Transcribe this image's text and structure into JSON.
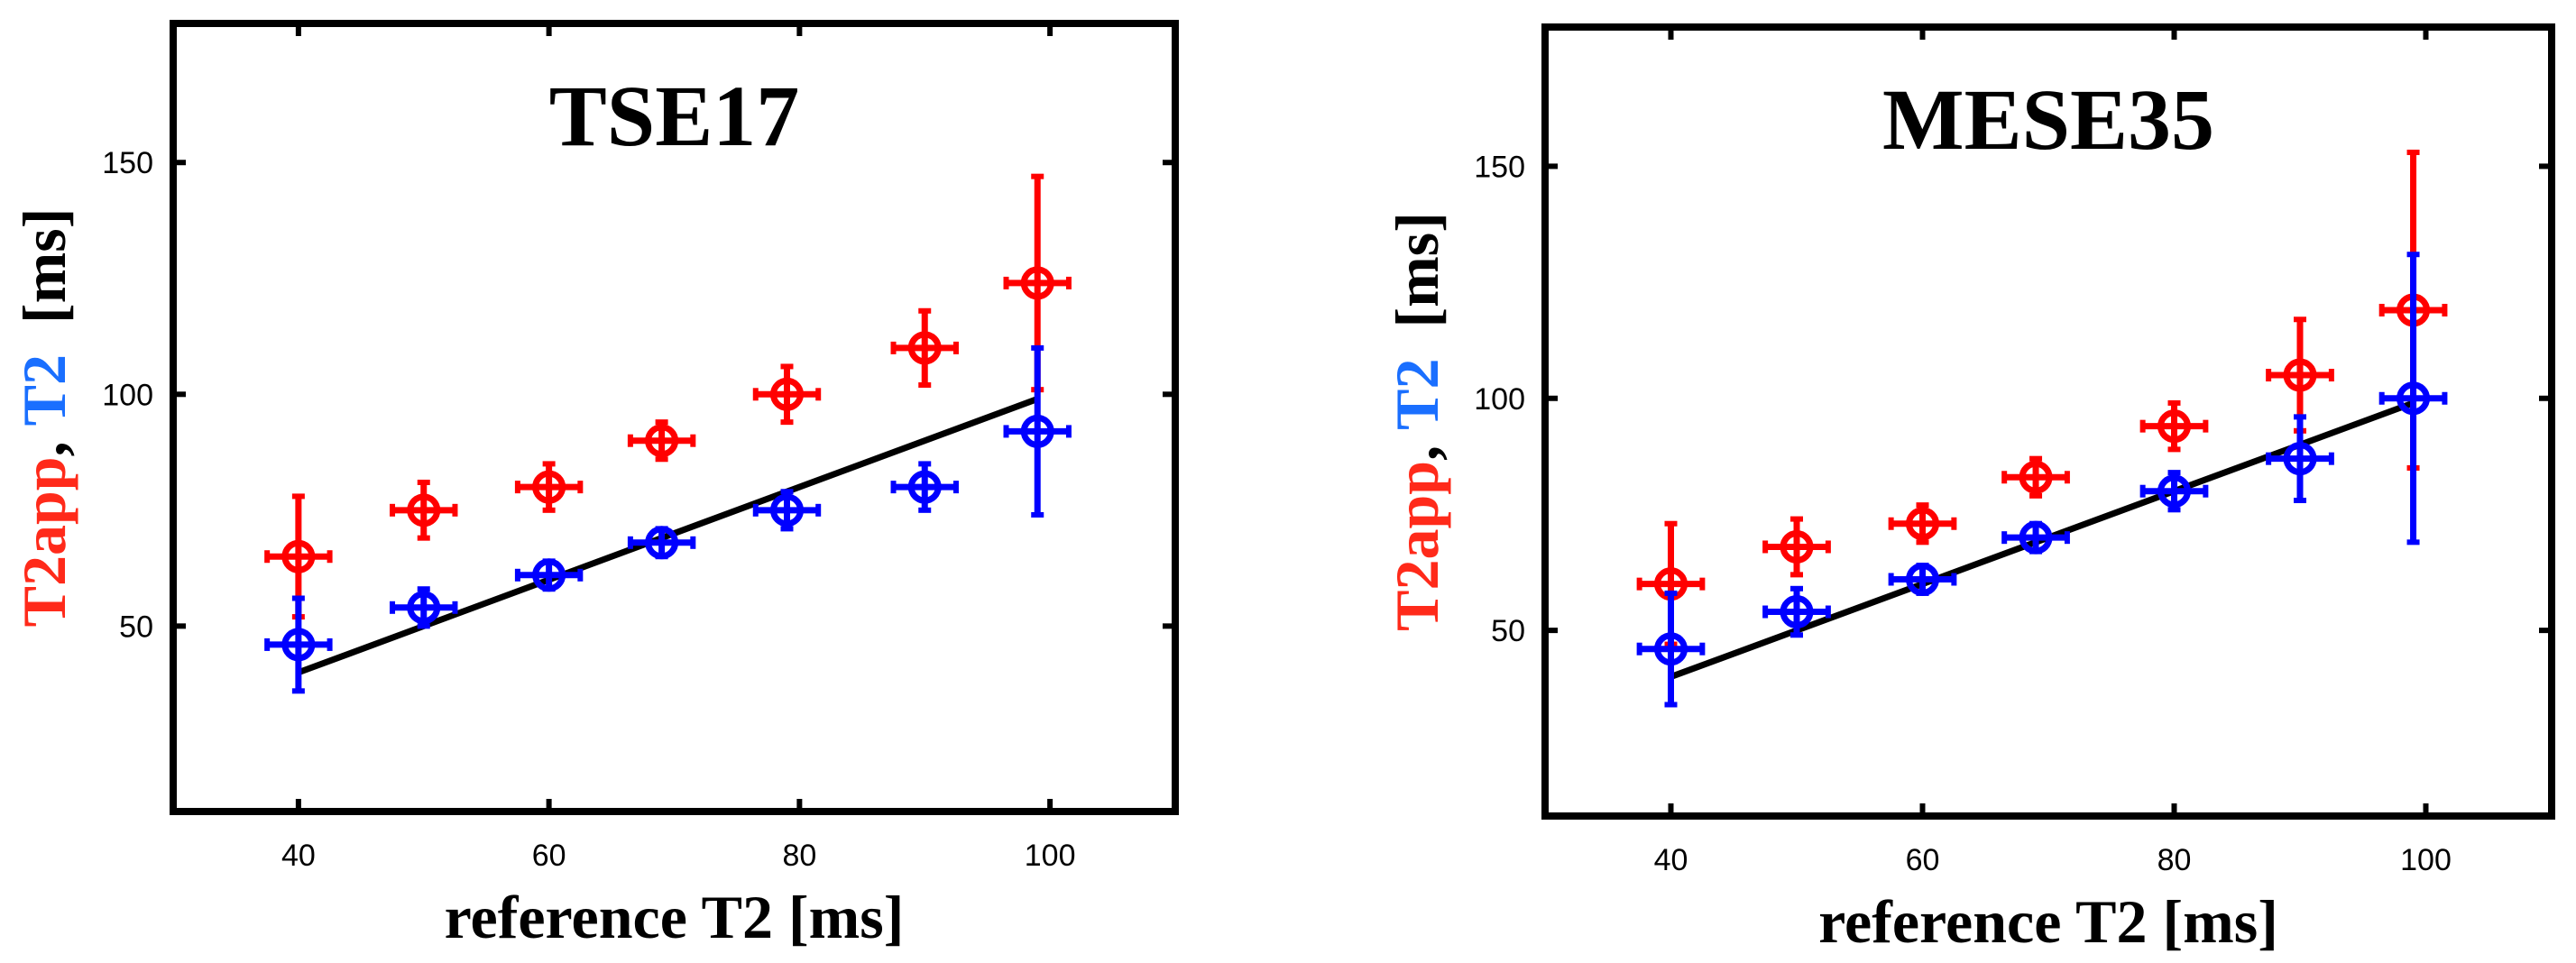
{
  "chart_data": [
    {
      "type": "scatter",
      "title": "TSE17",
      "xlabel": "reference T2 [ms]",
      "ylabel_parts": [
        {
          "text": "T2app",
          "color": "#ff2a1a"
        },
        {
          "text": ", ",
          "color": "#000000"
        },
        {
          "text": "T2",
          "color": "#1a6fff"
        },
        {
          "text": "  [ms]",
          "color": "#000000"
        }
      ],
      "xlim": [
        30,
        110
      ],
      "ylim": [
        10,
        180
      ],
      "xticks": [
        40,
        60,
        80,
        100
      ],
      "yticks": [
        50,
        100,
        150
      ],
      "series": [
        {
          "name": "T2app",
          "color": "#ff0000",
          "points": [
            {
              "x": 40,
              "y": 65,
              "yerr": 13,
              "xerr": 2.5
            },
            {
              "x": 50,
              "y": 75,
              "yerr": 6,
              "xerr": 2.5
            },
            {
              "x": 60,
              "y": 80,
              "yerr": 5,
              "xerr": 2.5
            },
            {
              "x": 69,
              "y": 90,
              "yerr": 4,
              "xerr": 2.5
            },
            {
              "x": 79,
              "y": 100,
              "yerr": 6,
              "xerr": 2.5
            },
            {
              "x": 90,
              "y": 110,
              "yerr": 8,
              "xerr": 2.5
            },
            {
              "x": 99,
              "y": 124,
              "yerr": 23,
              "xerr": 2.5
            }
          ]
        },
        {
          "name": "T2",
          "color": "#0000ff",
          "points": [
            {
              "x": 40,
              "y": 46,
              "yerr": 10,
              "xerr": 2.5
            },
            {
              "x": 50,
              "y": 54,
              "yerr": 4,
              "xerr": 2.5
            },
            {
              "x": 60,
              "y": 61,
              "yerr": 3,
              "xerr": 2.5
            },
            {
              "x": 69,
              "y": 68,
              "yerr": 3,
              "xerr": 2.5
            },
            {
              "x": 79,
              "y": 75,
              "yerr": 4,
              "xerr": 2.5
            },
            {
              "x": 90,
              "y": 80,
              "yerr": 5,
              "xerr": 2.5
            },
            {
              "x": 99,
              "y": 92,
              "yerr": 18,
              "xerr": 2.5
            }
          ]
        }
      ],
      "identity_line": {
        "x": [
          40,
          99
        ],
        "y": [
          40,
          99
        ],
        "color": "#000000"
      }
    },
    {
      "type": "scatter",
      "title": "MESE35",
      "xlabel": "reference T2 [ms]",
      "ylabel_parts": [
        {
          "text": "T2app",
          "color": "#ff2a1a"
        },
        {
          "text": ", ",
          "color": "#000000"
        },
        {
          "text": "T2",
          "color": "#1a6fff"
        },
        {
          "text": "  [ms]",
          "color": "#000000"
        }
      ],
      "xlim": [
        30,
        110
      ],
      "ylim": [
        10,
        180
      ],
      "xticks": [
        40,
        60,
        80,
        100
      ],
      "yticks": [
        50,
        100,
        150
      ],
      "series": [
        {
          "name": "T2app",
          "color": "#ff0000",
          "points": [
            {
              "x": 40,
              "y": 60,
              "yerr": 13,
              "xerr": 2.5
            },
            {
              "x": 50,
              "y": 68,
              "yerr": 6,
              "xerr": 2.5
            },
            {
              "x": 60,
              "y": 73,
              "yerr": 4,
              "xerr": 2.5
            },
            {
              "x": 69,
              "y": 83,
              "yerr": 4,
              "xerr": 2.5
            },
            {
              "x": 80,
              "y": 94,
              "yerr": 5,
              "xerr": 2.5
            },
            {
              "x": 90,
              "y": 105,
              "yerr": 12,
              "xerr": 2.5
            },
            {
              "x": 99,
              "y": 119,
              "yerr": 34,
              "xerr": 2.5
            }
          ]
        },
        {
          "name": "T2",
          "color": "#0000ff",
          "points": [
            {
              "x": 40,
              "y": 46,
              "yerr": 12,
              "xerr": 2.5
            },
            {
              "x": 50,
              "y": 54,
              "yerr": 5,
              "xerr": 2.5
            },
            {
              "x": 60,
              "y": 61,
              "yerr": 3,
              "xerr": 2.5
            },
            {
              "x": 69,
              "y": 70,
              "yerr": 3,
              "xerr": 2.5
            },
            {
              "x": 80,
              "y": 80,
              "yerr": 4,
              "xerr": 2.5
            },
            {
              "x": 90,
              "y": 87,
              "yerr": 9,
              "xerr": 2.5
            },
            {
              "x": 99,
              "y": 100,
              "yerr": 31,
              "xerr": 2.5
            }
          ]
        }
      ],
      "identity_line": {
        "x": [
          40,
          99
        ],
        "y": [
          40,
          99
        ],
        "color": "#000000"
      }
    }
  ]
}
